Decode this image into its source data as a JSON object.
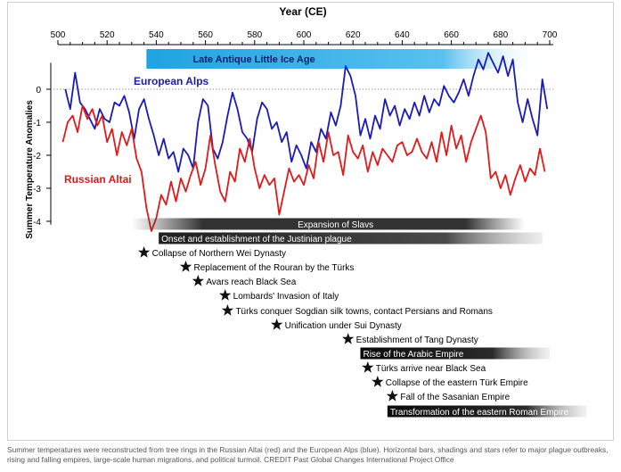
{
  "chart_data": {
    "type": "line",
    "title": "Year (CE)",
    "ylabel": "Summer Temperature Anomalies",
    "xlim": [
      500,
      700
    ],
    "ylim": [
      -4.3,
      1.2
    ],
    "x_ticks": [
      500,
      520,
      540,
      560,
      580,
      600,
      620,
      640,
      660,
      680,
      700
    ],
    "y_ticks": [
      0,
      -1,
      -2,
      -3,
      -4
    ],
    "grid": false,
    "zero_line": "dotted",
    "period_band": {
      "label": "Late Antique Little Ice Age",
      "start": 536,
      "end": 697,
      "color": "#3aaee6"
    },
    "series": [
      {
        "name": "European Alps",
        "color": "#1a1ab8",
        "x": [
          503,
          505,
          507,
          509,
          511,
          513,
          515,
          517,
          519,
          521,
          523,
          525,
          527,
          529,
          531,
          533,
          535,
          537,
          539,
          541,
          543,
          545,
          547,
          549,
          551,
          553,
          555,
          557,
          559,
          561,
          563,
          565,
          567,
          569,
          571,
          573,
          575,
          577,
          579,
          581,
          583,
          585,
          587,
          589,
          591,
          593,
          595,
          597,
          599,
          601,
          603,
          605,
          607,
          609,
          611,
          613,
          615,
          617,
          619,
          621,
          623,
          625,
          627,
          629,
          631,
          633,
          635,
          637,
          639,
          641,
          643,
          645,
          647,
          649,
          651,
          653,
          655,
          657,
          659,
          661,
          663,
          665,
          667,
          669,
          671,
          673,
          675,
          677,
          679,
          681,
          683,
          685,
          687,
          689,
          691,
          693,
          695,
          697,
          699
        ],
        "values": [
          0.0,
          -0.6,
          0.5,
          -0.4,
          -0.6,
          -0.9,
          -1.2,
          -0.6,
          -0.9,
          -1.0,
          -0.4,
          -0.5,
          -0.2,
          -0.7,
          -1.5,
          -0.6,
          -0.3,
          -0.9,
          -1.4,
          -2.0,
          -1.5,
          -2.1,
          -1.9,
          -2.5,
          -1.8,
          -2.0,
          -2.4,
          -1.0,
          -0.3,
          -0.5,
          -1.8,
          -2.1,
          -1.6,
          -0.8,
          -0.1,
          -0.6,
          -1.3,
          -1.5,
          -1.9,
          -0.9,
          -0.4,
          -0.6,
          -1.2,
          -1.0,
          -1.6,
          -1.3,
          -2.2,
          -1.7,
          -2.0,
          -2.4,
          -1.6,
          -1.9,
          -1.2,
          -1.5,
          -0.7,
          -1.1,
          -0.5,
          0.7,
          0.4,
          -0.2,
          -1.4,
          -0.9,
          -1.5,
          -0.8,
          -1.2,
          -0.3,
          -0.8,
          -0.5,
          -1.1,
          -0.6,
          -0.9,
          -0.4,
          -0.8,
          -0.2,
          -0.7,
          -0.3,
          -0.5,
          0.1,
          -0.2,
          -0.4,
          -0.1,
          0.3,
          -0.2,
          0.4,
          0.9,
          0.6,
          1.1,
          0.8,
          0.5,
          1.0,
          0.4,
          0.9,
          -0.4,
          -1.0,
          -0.3,
          -0.9,
          -1.4,
          0.3,
          -0.6
        ]
      },
      {
        "name": "Russian Altai",
        "color": "#e01a1a",
        "x": [
          502,
          504,
          506,
          508,
          510,
          512,
          514,
          516,
          518,
          520,
          522,
          524,
          526,
          528,
          530,
          532,
          534,
          536,
          538,
          540,
          542,
          544,
          546,
          548,
          550,
          552,
          554,
          556,
          558,
          560,
          562,
          564,
          566,
          568,
          570,
          572,
          574,
          576,
          578,
          580,
          582,
          584,
          586,
          588,
          590,
          592,
          594,
          596,
          598,
          600,
          602,
          604,
          606,
          608,
          610,
          612,
          614,
          616,
          618,
          620,
          622,
          624,
          626,
          628,
          630,
          632,
          634,
          636,
          638,
          640,
          642,
          644,
          646,
          648,
          650,
          652,
          654,
          656,
          658,
          660,
          662,
          664,
          666,
          668,
          670,
          672,
          674,
          676,
          678,
          680,
          682,
          684,
          686,
          688,
          690,
          692,
          694,
          696,
          698
        ],
        "values": [
          -1.6,
          -1.0,
          -0.8,
          -1.3,
          -0.5,
          -0.9,
          -0.6,
          -1.1,
          -0.8,
          -1.6,
          -1.2,
          -2.0,
          -1.3,
          -1.7,
          -1.2,
          -2.1,
          -2.5,
          -3.6,
          -4.3,
          -3.9,
          -3.2,
          -3.5,
          -2.8,
          -3.4,
          -2.7,
          -3.1,
          -2.6,
          -2.2,
          -2.9,
          -2.4,
          -1.4,
          -2.3,
          -3.1,
          -3.4,
          -2.5,
          -2.8,
          -1.8,
          -2.2,
          -1.5,
          -2.4,
          -3.0,
          -2.6,
          -2.9,
          -2.7,
          -3.8,
          -3.1,
          -2.4,
          -2.8,
          -2.6,
          -2.9,
          -2.3,
          -2.7,
          -1.6,
          -2.2,
          -1.3,
          -2.0,
          -1.9,
          -2.6,
          -1.4,
          -1.9,
          -2.1,
          -1.7,
          -2.5,
          -1.9,
          -2.3,
          -1.8,
          -2.0,
          -2.2,
          -1.7,
          -1.6,
          -2.0,
          -1.9,
          -1.5,
          -1.9,
          -2.1,
          -1.6,
          -2.2,
          -1.3,
          -2.0,
          -1.1,
          -1.8,
          -1.4,
          -2.2,
          -1.6,
          -1.2,
          -0.8,
          -1.3,
          -2.7,
          -2.5,
          -3.0,
          -2.6,
          -3.2,
          -2.7,
          -2.3,
          -2.8,
          -2.4,
          -2.6,
          -1.8,
          -2.5
        ]
      }
    ],
    "annotations": {
      "bars": [
        {
          "label": "Expansion of Slavs",
          "start": 530,
          "end": 690,
          "style": "dark-center"
        },
        {
          "label": "Onset and establishment of the Justinian plague",
          "start": 541,
          "end": 697,
          "style": "dark-left"
        },
        {
          "label": "Rise of the Arabic Empire",
          "start": 623,
          "end": 700,
          "style": "black-left"
        },
        {
          "label": "Transformation of the eastern Roman Empire",
          "start": 634,
          "end": 715,
          "style": "black-left"
        }
      ],
      "events": [
        {
          "year": 535,
          "label": "Collapse of Northern Wei Dynasty"
        },
        {
          "year": 552,
          "label": "Replacement of the Rouran by the Türks"
        },
        {
          "year": 557,
          "label": "Avars reach Black Sea"
        },
        {
          "year": 568,
          "label": "Lombards' Invasion of Italy"
        },
        {
          "year": 569,
          "label": "Türks conquer Sogdian silk towns, contact Persians and Romans"
        },
        {
          "year": 589,
          "label": "Unification under Sui Dynasty"
        },
        {
          "year": 618,
          "label": "Establishment of Tang Dynasty"
        },
        {
          "year": 626,
          "label": "Türks arrive near Black Sea"
        },
        {
          "year": 630,
          "label": "Collapse of the eastern Türk Empire"
        },
        {
          "year": 636,
          "label": "Fall of the Sasanian Empire"
        }
      ]
    }
  },
  "caption": "Summer temperatures were reconstructed from tree rings in the Russian Altai (red) and the European Alps (blue). Horizontal bars, shadings and stars refer to major plague outbreaks, rising and falling empires, large-scale human migrations, and political turmoil. CREDIT Past Global Changes International Project Office"
}
